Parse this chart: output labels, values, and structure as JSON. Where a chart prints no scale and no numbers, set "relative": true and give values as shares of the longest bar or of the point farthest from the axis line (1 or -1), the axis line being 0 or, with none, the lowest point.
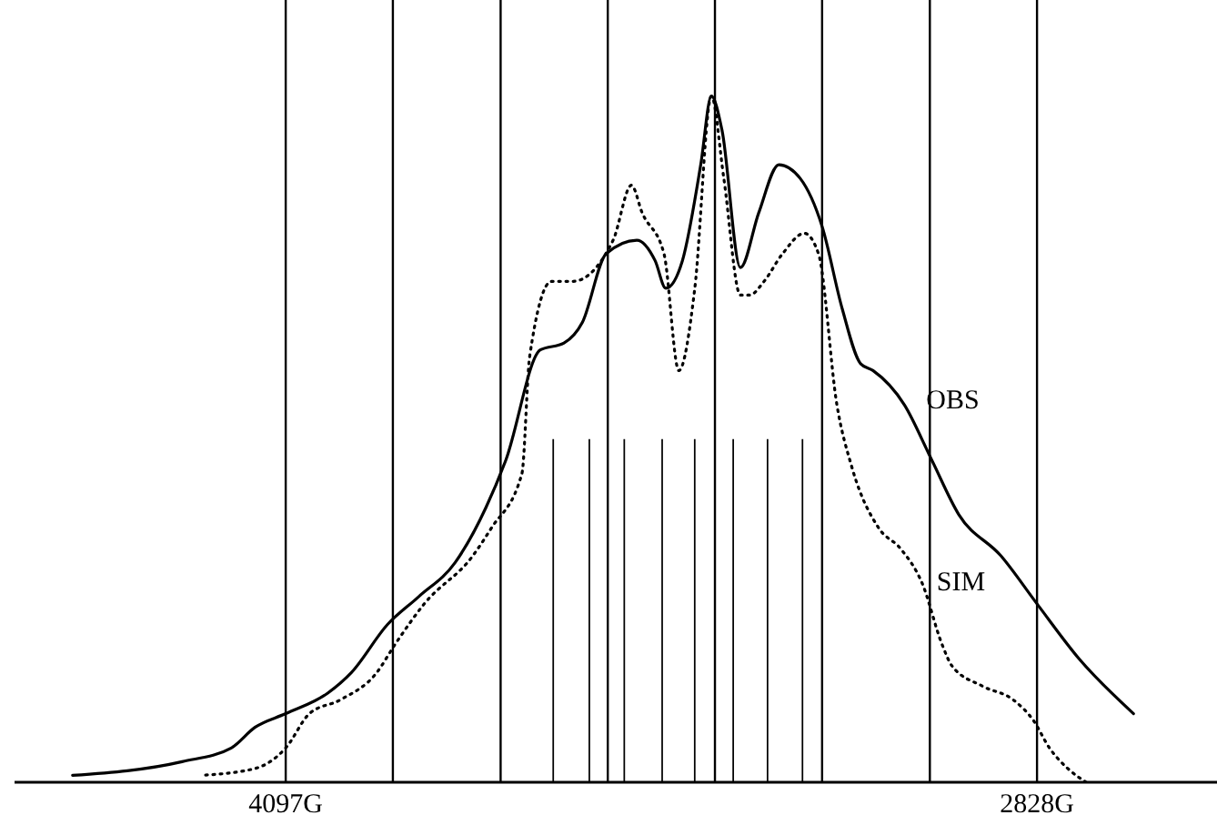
{
  "chart_data": {
    "type": "line",
    "relative": true,
    "xlim": [
      4555,
      2524
    ],
    "xticks": [
      {
        "value": 4097,
        "label": "4097G"
      },
      {
        "value": 3916,
        "label": null
      },
      {
        "value": 3734,
        "label": null
      },
      {
        "value": 3553,
        "label": null
      },
      {
        "value": 3372,
        "label": null
      },
      {
        "value": 3191,
        "label": null
      },
      {
        "value": 3009,
        "label": null
      },
      {
        "value": 2828,
        "label": "2828G"
      }
    ],
    "grid": "x",
    "marker": "none",
    "legend": false,
    "series": [
      {
        "name": "OBS",
        "color": "#000000",
        "line_style": "solid",
        "x": [
          4457,
          4272,
          4189,
          4149,
          4097,
          4026,
          3986,
          3925,
          3873,
          3811,
          3759,
          3725,
          3667,
          3627,
          3596,
          3556,
          3504,
          3473,
          3455,
          3427,
          3396,
          3378,
          3360,
          3329,
          3298,
          3264,
          3228,
          3191,
          3157,
          3126,
          3105,
          3052,
          3006,
          2960,
          2889,
          2828,
          2757,
          2665
        ],
        "values": [
          0.01,
          0.03,
          0.05,
          0.08,
          0.1,
          0.13,
          0.16,
          0.23,
          0.27,
          0.32,
          0.4,
          0.47,
          0.63,
          0.64,
          0.67,
          0.77,
          0.79,
          0.76,
          0.72,
          0.76,
          0.9,
          1.0,
          0.95,
          0.75,
          0.83,
          0.9,
          0.88,
          0.81,
          0.69,
          0.61,
          0.6,
          0.55,
          0.47,
          0.39,
          0.33,
          0.26,
          0.18,
          0.1
        ]
      },
      {
        "name": "SIM",
        "color": "#000000",
        "line_style": "dotted",
        "x": [
          4241,
          4149,
          4097,
          4057,
          4005,
          3943,
          3913,
          3863,
          3781,
          3750,
          3698,
          3685,
          3648,
          3612,
          3544,
          3513,
          3495,
          3458,
          3433,
          3406,
          3378,
          3357,
          3329,
          3313,
          3289,
          3258,
          3221,
          3197,
          3166,
          3141,
          3095,
          3058,
          3022,
          2988,
          2972,
          2920,
          2868,
          2834,
          2807,
          2776,
          2745
        ],
        "values": [
          0.01,
          0.02,
          0.05,
          0.1,
          0.12,
          0.16,
          0.2,
          0.26,
          0.33,
          0.37,
          0.45,
          0.62,
          0.73,
          0.73,
          0.79,
          0.87,
          0.83,
          0.77,
          0.6,
          0.72,
          1.0,
          0.88,
          0.71,
          0.71,
          0.73,
          0.77,
          0.8,
          0.77,
          0.55,
          0.46,
          0.37,
          0.34,
          0.29,
          0.2,
          0.17,
          0.14,
          0.12,
          0.09,
          0.05,
          0.02,
          0
        ]
      },
      {
        "type": "bar",
        "color": "#000000",
        "x": [
          3645,
          3584,
          3525,
          3461,
          3406,
          3341,
          3283,
          3224
        ],
        "values": [
          0.5,
          0.5,
          0.5,
          0.5,
          0.5,
          0.5,
          0.5,
          0.5
        ]
      }
    ]
  }
}
